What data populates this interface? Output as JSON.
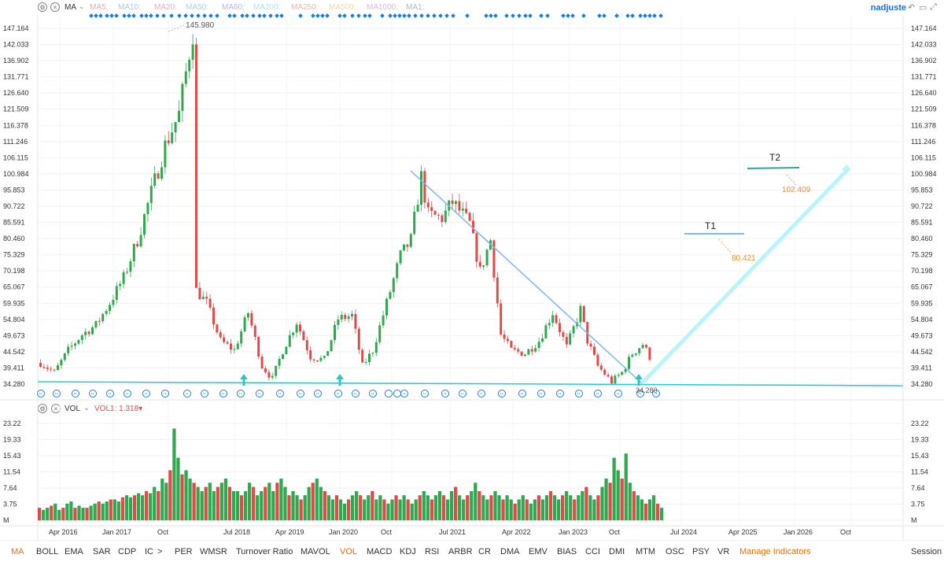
{
  "toolbar": {
    "indicator": "MA",
    "ma_items": [
      {
        "label": "MA5:",
        "color": "#f4a6a6"
      },
      {
        "label": "MA10:",
        "color": "#a9c8f0"
      },
      {
        "label": "MA20:",
        "color": "#f0a8d8"
      },
      {
        "label": "MA50:",
        "color": "#9fd2f2"
      },
      {
        "label": "MA60:",
        "color": "#b8b8e8"
      },
      {
        "label": "MA200:",
        "color": "#9fe8f0"
      },
      {
        "label": "MA250:",
        "color": "#f4b0a0"
      },
      {
        "label": "MA500:",
        "color": "#f4d890"
      },
      {
        "label": "MA1000:",
        "color": "#d8b8e8"
      },
      {
        "label": "MA1:",
        "color": "#b8b8b8"
      }
    ],
    "user": "nadjuste",
    "settings_icon": "gear-icon",
    "close_icon": "close-icon"
  },
  "chart_data": {
    "type": "candlestick",
    "price_axis_ticks": [
      147.164,
      142.033,
      136.902,
      131.771,
      126.64,
      121.509,
      116.378,
      111.246,
      106.115,
      100.984,
      95.853,
      90.722,
      85.591,
      80.46,
      75.329,
      70.198,
      65.067,
      59.935,
      54.804,
      49.673,
      44.542,
      39.411,
      34.28
    ],
    "ylim": [
      34.28,
      147.164
    ],
    "annotations": {
      "high_label": "145.980",
      "low_label": "34.280",
      "targets": [
        {
          "name": "T1",
          "value": "80.421"
        },
        {
          "name": "T2",
          "value": "102.409"
        }
      ]
    },
    "x_axis_labels": [
      "Apr 2016",
      "Jan 2017",
      "Oct",
      "Jul 2018",
      "Apr 2019",
      "Jan 2020",
      "Oct",
      "Jul 2021",
      "Apr 2022",
      "Jan 2023",
      "Oct",
      "Jul 2024",
      "Apr 2025",
      "Jan 2026",
      "Oct"
    ],
    "price_path": [
      [
        0,
        41
      ],
      [
        4,
        38
      ],
      [
        8,
        45
      ],
      [
        12,
        50
      ],
      [
        16,
        53
      ],
      [
        20,
        60
      ],
      [
        24,
        68
      ],
      [
        28,
        80
      ],
      [
        32,
        95
      ],
      [
        36,
        110
      ],
      [
        40,
        120
      ],
      [
        44,
        146
      ],
      [
        45,
        64
      ],
      [
        48,
        60
      ],
      [
        52,
        48
      ],
      [
        56,
        45
      ],
      [
        60,
        57
      ],
      [
        64,
        40
      ],
      [
        67,
        36
      ],
      [
        70,
        45
      ],
      [
        74,
        54
      ],
      [
        78,
        43
      ],
      [
        82,
        42
      ],
      [
        86,
        55
      ],
      [
        90,
        56
      ],
      [
        93,
        40
      ],
      [
        96,
        45
      ],
      [
        100,
        60
      ],
      [
        104,
        75
      ],
      [
        107,
        80
      ],
      [
        110,
        100
      ],
      [
        112,
        88
      ],
      [
        116,
        87
      ],
      [
        119,
        92
      ],
      [
        122,
        88
      ],
      [
        124,
        85
      ],
      [
        127,
        70
      ],
      [
        130,
        80
      ],
      [
        133,
        50
      ],
      [
        136,
        45
      ],
      [
        140,
        44
      ],
      [
        144,
        48
      ],
      [
        148,
        57
      ],
      [
        152,
        46
      ],
      [
        156,
        58
      ],
      [
        158,
        48
      ],
      [
        161,
        40
      ],
      [
        165,
        35
      ],
      [
        168,
        38
      ],
      [
        171,
        44
      ],
      [
        174,
        47
      ],
      [
        176,
        43
      ]
    ],
    "volume": {
      "label": "VOL",
      "value_label": "VOL1: 1.318▾",
      "axis_ticks": [
        "23.22",
        "19.33",
        "15.43",
        "11.54",
        "7.64",
        "3.75",
        "M"
      ],
      "ylim": [
        0,
        23.22
      ],
      "bars": [
        3,
        2.5,
        3,
        3.5,
        4,
        2.5,
        3,
        4,
        4.5,
        3,
        3.5,
        3,
        3,
        3.5,
        4,
        4.5,
        4,
        4.5,
        5,
        5,
        4.5,
        5.5,
        6,
        5.5,
        6,
        6.5,
        6,
        7,
        6.5,
        8,
        7,
        10,
        9,
        12,
        22,
        15,
        11,
        12,
        10,
        9,
        8,
        7,
        8,
        9,
        7,
        8,
        9,
        10,
        8,
        7,
        7,
        6,
        7,
        9,
        8,
        6,
        7,
        8,
        9,
        7,
        9,
        10,
        8,
        6,
        7,
        6,
        5,
        6,
        8,
        9,
        10,
        8,
        7,
        6,
        5,
        6,
        5,
        4,
        5,
        6,
        7,
        6,
        5,
        6,
        7,
        5,
        6,
        5,
        4,
        5,
        6,
        5,
        6,
        5,
        4,
        5,
        6,
        7,
        6,
        5,
        6,
        7,
        6,
        5,
        7,
        8,
        6,
        5,
        6,
        7,
        9,
        7,
        6,
        5,
        6,
        7,
        6,
        5,
        6,
        5,
        4,
        5,
        6,
        5,
        4,
        5,
        6,
        5,
        6,
        7,
        6,
        5,
        6,
        7,
        6,
        5,
        6,
        7,
        8,
        6,
        5,
        6,
        8,
        10,
        9,
        15,
        12,
        10,
        16,
        9,
        7,
        6,
        5,
        4,
        5,
        6,
        4,
        3
      ]
    },
    "trendlines": [
      {
        "kind": "support",
        "from": "34.280 base",
        "to": "34.280"
      },
      {
        "kind": "downtrend",
        "from": "101.8",
        "to": "37"
      },
      {
        "kind": "projection",
        "from": "36",
        "to": "101"
      }
    ]
  },
  "indicators": [
    "MA",
    "BOLL",
    "EMA",
    "SAR",
    "CDP",
    "IC",
    ">",
    "PER",
    "WMSR",
    "Turnover Ratio",
    "MAVOL",
    "VOL",
    "MACD",
    "KDJ",
    "RSI",
    "ARBR",
    "CR",
    "DMA",
    "EMV",
    "BIAS",
    "CCI",
    "DMI",
    "MTM",
    "OSC",
    "PSY",
    "VR",
    "Manage Indicators"
  ],
  "indicators_active": [
    "MA",
    "VOL",
    "Manage Indicators"
  ],
  "session_label": "Session"
}
